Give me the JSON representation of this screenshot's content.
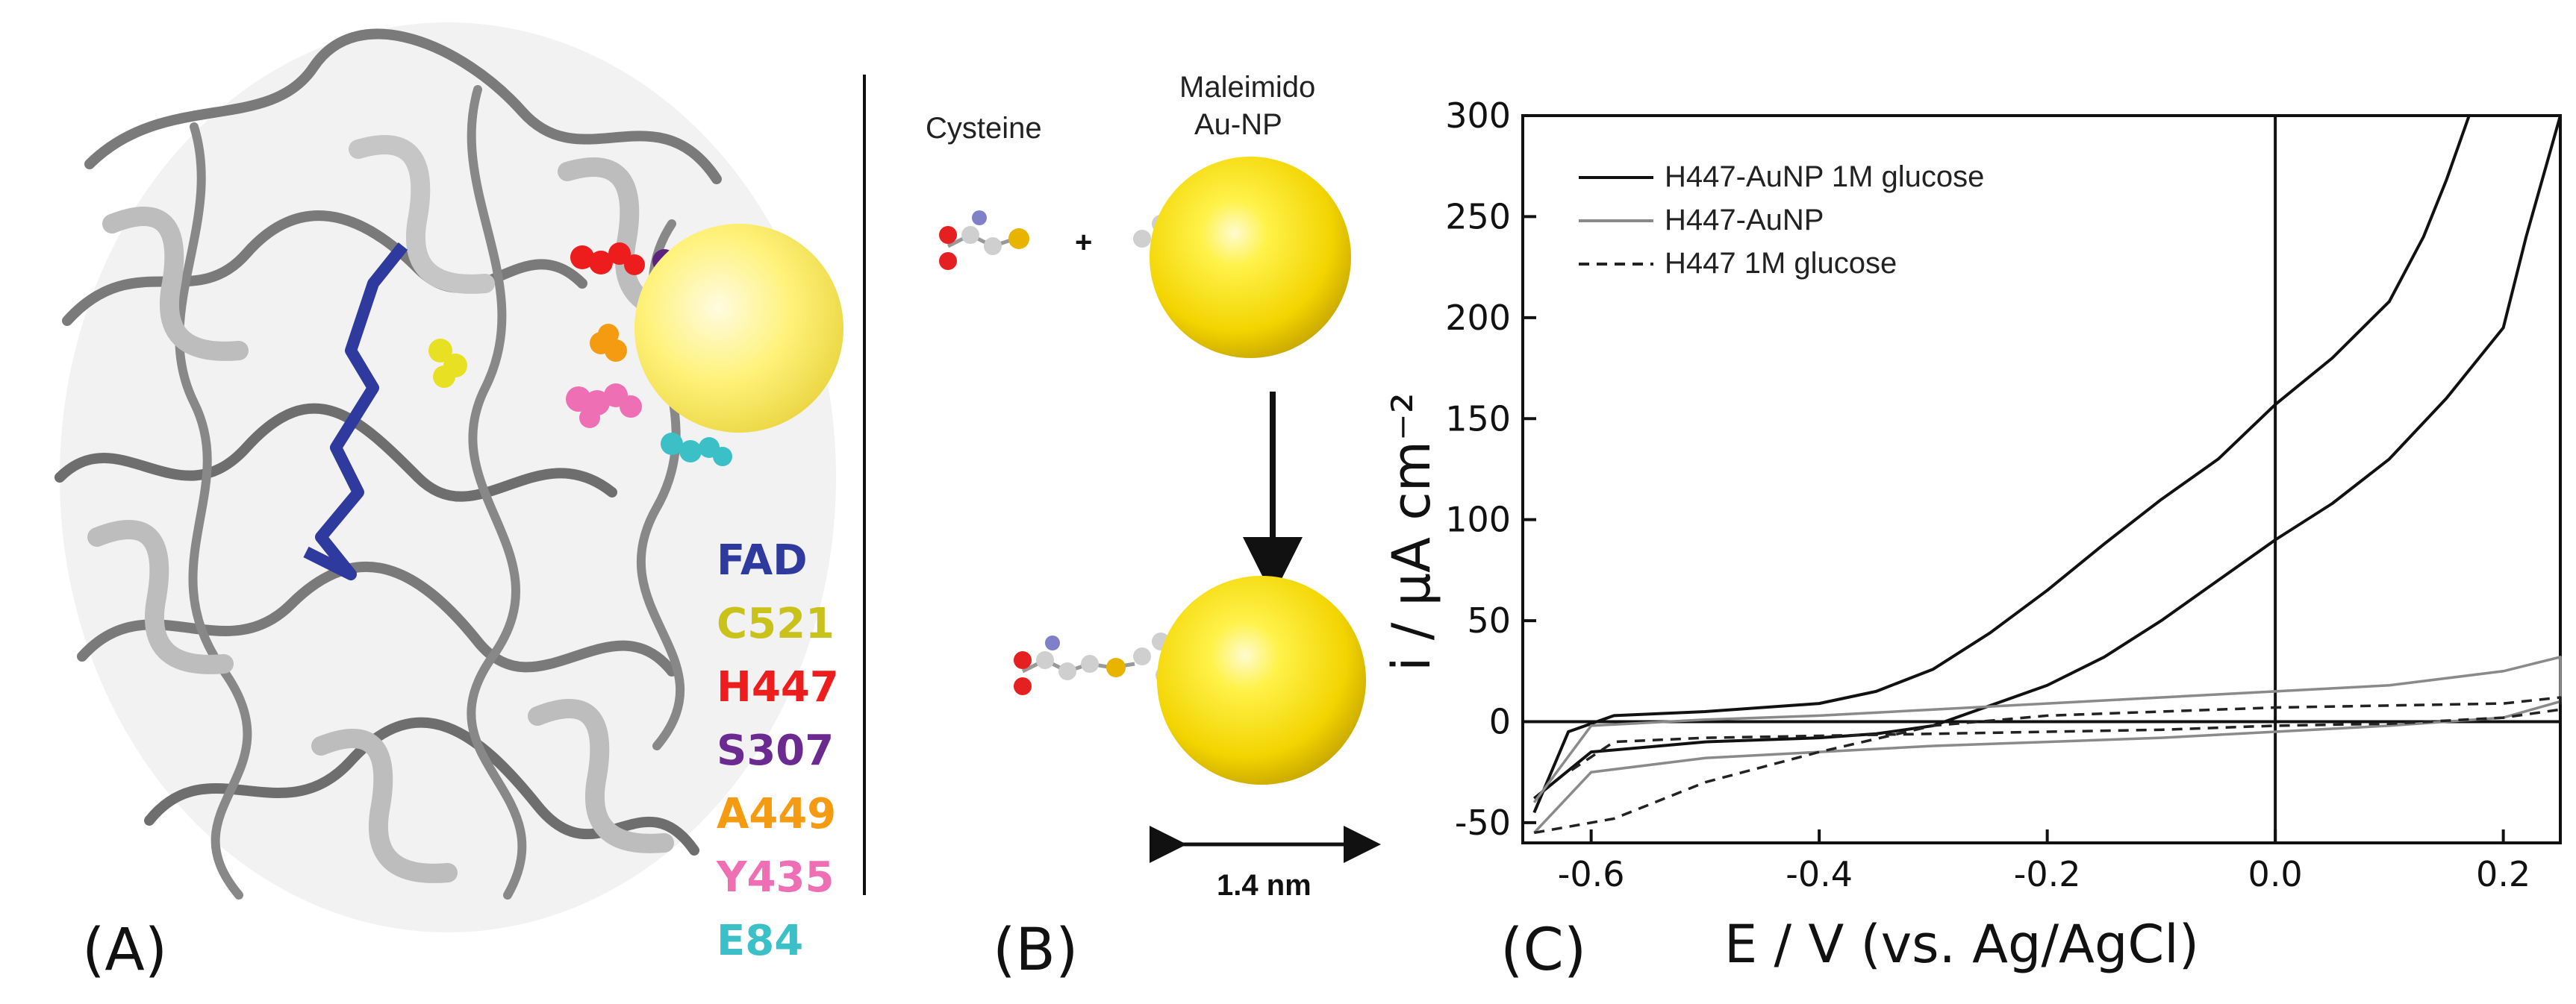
{
  "panel_labels": {
    "a": "(A)",
    "b": "(B)",
    "c": "(C)"
  },
  "panel_a": {
    "legend": [
      {
        "label": "FAD",
        "color": "#2e3a9e"
      },
      {
        "label": "C521",
        "color": "#c9c21a"
      },
      {
        "label": "H447",
        "color": "#ee1d1d"
      },
      {
        "label": "S307",
        "color": "#6b2a8f"
      },
      {
        "label": "A449",
        "color": "#f59b12"
      },
      {
        "label": "Y435",
        "color": "#ee6fb3"
      },
      {
        "label": "E84",
        "color": "#3cc0c8"
      }
    ]
  },
  "panel_b": {
    "cysteine_label": "Cysteine",
    "nanoparticle_label_line1": "Maleimido",
    "nanoparticle_label_line2": "Au-NP",
    "plus": "+",
    "scale_label": "1.4 nm"
  },
  "chart_data": {
    "type": "line",
    "title": "",
    "xlabel": "E / V (vs. Ag/AgCl)",
    "ylabel": "i / µA cm⁻²",
    "xlim": [
      -0.66,
      0.25
    ],
    "ylim": [
      -60,
      300
    ],
    "x_ticks": [
      -0.6,
      -0.4,
      -0.2,
      0.0,
      0.2
    ],
    "x_tick_labels": [
      "-0.6",
      "-0.4",
      "-0.2",
      "0.0",
      "0.2"
    ],
    "y_ticks": [
      -50,
      0,
      50,
      100,
      150,
      200,
      250,
      300
    ],
    "y_tick_labels": [
      "-50",
      "0",
      "50",
      "100",
      "150",
      "200",
      "250",
      "300"
    ],
    "legend_position": "top-left",
    "series": [
      {
        "name": "H447-AuNP 1M glucose",
        "color": "#111111",
        "style": "solid",
        "x": [
          -0.65,
          -0.62,
          -0.58,
          -0.5,
          -0.4,
          -0.35,
          -0.3,
          -0.25,
          -0.2,
          -0.15,
          -0.1,
          -0.05,
          0.0,
          0.05,
          0.1,
          0.13,
          0.15,
          0.17
        ],
        "y": [
          -45,
          -5,
          3,
          5,
          9,
          15,
          26,
          44,
          65,
          88,
          110,
          130,
          157,
          180,
          208,
          240,
          268,
          300
        ],
        "x2": [
          0.25,
          0.22,
          0.2,
          0.15,
          0.1,
          0.05,
          0.0,
          -0.05,
          -0.1,
          -0.15,
          -0.2,
          -0.25,
          -0.3,
          -0.35,
          -0.4,
          -0.5,
          -0.6,
          -0.65
        ],
        "y2": [
          300,
          240,
          195,
          160,
          130,
          108,
          90,
          70,
          50,
          32,
          18,
          8,
          -2,
          -6,
          -8,
          -10,
          -15,
          -38
        ]
      },
      {
        "name": "H447-AuNP",
        "color": "#8a8a8a",
        "style": "solid",
        "x": [
          -0.65,
          -0.6,
          -0.5,
          -0.4,
          -0.3,
          -0.2,
          -0.1,
          0.0,
          0.1,
          0.2,
          0.25
        ],
        "y": [
          -40,
          -2,
          1,
          3,
          6,
          9,
          12,
          15,
          18,
          25,
          32
        ],
        "x2": [
          0.25,
          0.2,
          0.1,
          0.0,
          -0.1,
          -0.2,
          -0.3,
          -0.4,
          -0.5,
          -0.6,
          -0.65
        ],
        "y2": [
          10,
          2,
          -2,
          -5,
          -8,
          -10,
          -12,
          -15,
          -18,
          -25,
          -55
        ]
      },
      {
        "name": "H447 1M glucose",
        "color": "#222222",
        "style": "dashed",
        "x": [
          -0.65,
          -0.58,
          -0.5,
          -0.4,
          -0.3,
          -0.2,
          -0.1,
          0.0,
          0.1,
          0.2,
          0.25
        ],
        "y": [
          -55,
          -48,
          -30,
          -15,
          -2,
          3,
          5,
          7,
          8,
          9,
          12
        ],
        "x2": [
          0.25,
          0.2,
          0.1,
          0.0,
          -0.1,
          -0.2,
          -0.3,
          -0.4,
          -0.5,
          -0.58,
          -0.62
        ],
        "y2": [
          6,
          2,
          -1,
          -2,
          -4,
          -5,
          -6,
          -7,
          -8,
          -10,
          -25
        ]
      }
    ]
  }
}
